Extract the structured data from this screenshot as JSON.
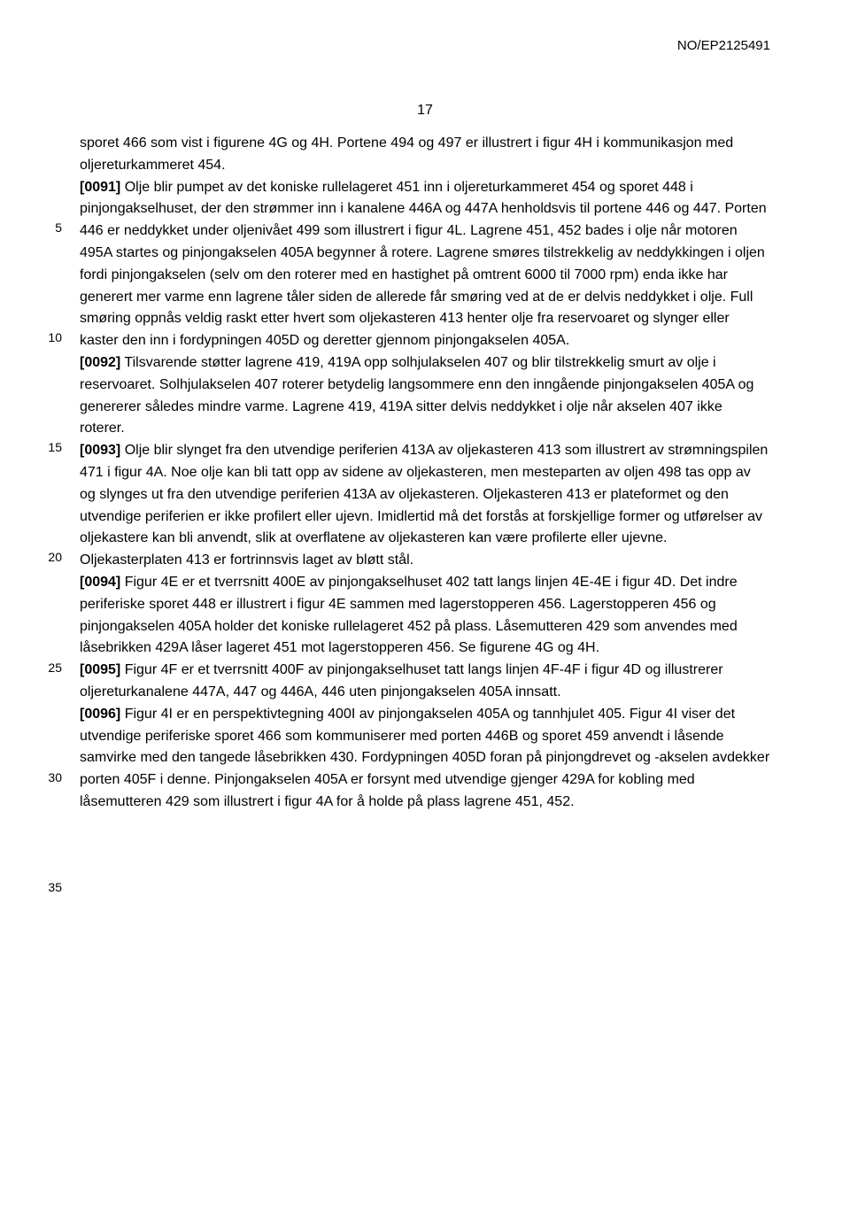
{
  "header": {
    "docId": "NO/EP2125491"
  },
  "pageNumber": "17",
  "lineNumbers": [
    {
      "num": "5",
      "topPx": 97
    },
    {
      "num": "10",
      "topPx": 221
    },
    {
      "num": "15",
      "topPx": 345
    },
    {
      "num": "20",
      "topPx": 469
    },
    {
      "num": "25",
      "topPx": 594
    },
    {
      "num": "30",
      "topPx": 718
    },
    {
      "num": "35",
      "topPx": 842
    }
  ],
  "paragraphs": [
    {
      "bold": "",
      "text": "sporet 466 som vist i figurene 4G og 4H. Portene 494 og 497 er illustrert i figur 4H i kommunikasjon med oljereturkammeret 454."
    },
    {
      "bold": "[0091]",
      "text": " Olje blir pumpet av det koniske rullelageret 451 inn i oljereturkammeret 454 og sporet 448 i pinjongakselhuset, der den strømmer inn i kanalene 446A og 447A henholdsvis til portene 446 og 447. Porten 446 er neddykket under oljenivået 499 som illustrert i figur 4L. Lagrene 451, 452 bades i olje når motoren 495A startes og pinjongakselen 405A begynner å rotere. Lagrene smøres tilstrekkelig av neddykkingen i oljen fordi pinjongakselen (selv om den roterer med en hastighet på omtrent 6000 til 7000 rpm) enda ikke har generert mer varme enn lagrene tåler siden de allerede får smøring ved at de er delvis neddykket i olje. Full smøring oppnås veldig raskt etter hvert som oljekasteren 413 henter olje fra reservoaret og slynger eller kaster den inn i fordypningen 405D og deretter gjennom pinjongakselen 405A."
    },
    {
      "bold": "[0092]",
      "text": " Tilsvarende støtter lagrene 419, 419A opp solhjulakselen 407 og blir tilstrekkelig smurt av olje i reservoaret. Solhjulakselen 407 roterer betydelig langsommere enn den inngående pinjongakselen 405A og genererer således mindre varme. Lagrene 419, 419A sitter delvis neddykket i olje når akselen 407 ikke roterer."
    },
    {
      "bold": "[0093]",
      "text": " Olje blir slynget fra den utvendige periferien 413A av oljekasteren 413 som illustrert av strømningspilen 471 i figur 4A. Noe olje kan bli tatt opp av sidene av oljekasteren, men mesteparten av oljen 498 tas opp av og slynges ut fra den utvendige periferien 413A av oljekasteren. Oljekasteren 413 er plateformet og den utvendige periferien er ikke profilert eller ujevn. Imidlertid må det forstås at forskjellige former og utførelser av oljekastere kan bli anvendt, slik at overflatene av oljekasteren kan være profilerte eller ujevne. Oljekasterplaten 413 er fortrinnsvis laget av bløtt stål."
    },
    {
      "bold": "[0094]",
      "text": " Figur 4E er et tverrsnitt 400E av pinjongakselhuset 402 tatt langs linjen 4E-4E i figur 4D. Det indre periferiske sporet 448 er illustrert i figur 4E sammen med lagerstopperen 456. Lagerstopperen 456 og pinjongakselen 405A holder det koniske rullelageret 452 på plass. Låsemutteren 429 som anvendes med låsebrikken 429A låser lageret 451 mot lagerstopperen 456. Se figurene 4G og 4H."
    },
    {
      "bold": "[0095]",
      "text": " Figur 4F er et tverrsnitt 400F av pinjongakselhuset tatt langs linjen 4F-4F i figur 4D og illustrerer oljereturkanalene 447A, 447 og 446A, 446 uten pinjongakselen 405A innsatt."
    },
    {
      "bold": "[0096]",
      "text": " Figur 4I er en perspektivtegning 400I av pinjongakselen 405A og tannhjulet 405. Figur 4I viser det utvendige periferiske sporet 466 som kommuniserer med porten 446B og sporet 459 anvendt i låsende samvirke med den tangede låsebrikken 430. Fordypningen 405D foran på pinjongdrevet og -akselen avdekker porten 405F i denne. Pinjongakselen 405A er forsynt med utvendige gjenger 429A for kobling med låsemutteren 429 som illustrert i figur 4A for å holde på plass lagrene 451, 452."
    }
  ]
}
